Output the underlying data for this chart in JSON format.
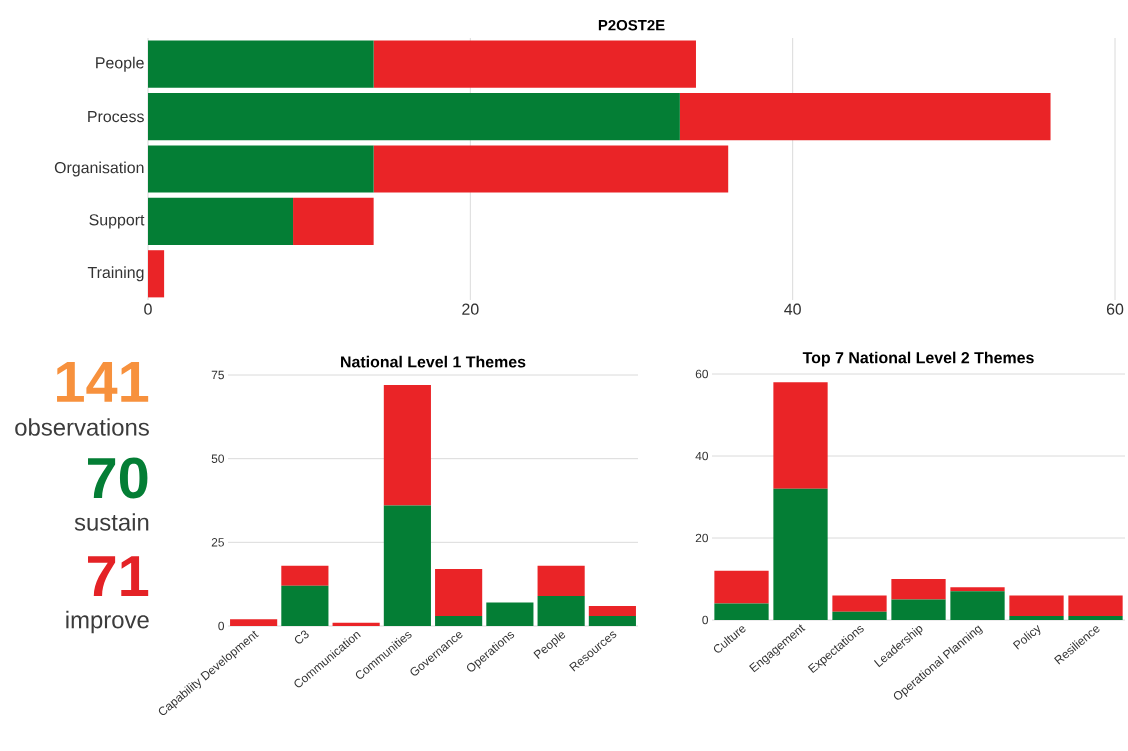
{
  "chart_data": [
    {
      "type": "bar",
      "title": "P2OST2E",
      "orientation": "horizontal",
      "stacked": true,
      "categories": [
        "People",
        "Process",
        "Organisation",
        "Support",
        "Training"
      ],
      "xlim": [
        0,
        60
      ],
      "xticks": [
        0,
        20,
        40,
        60
      ],
      "grid": "x",
      "series": [
        {
          "color": "#047e35",
          "values": [
            14,
            33,
            14,
            9,
            0
          ]
        },
        {
          "color": "#ea2427",
          "values": [
            20,
            23,
            22,
            5,
            1
          ]
        }
      ]
    },
    {
      "type": "other",
      "annotations": [
        "141",
        "observations",
        "70",
        "sustain",
        "71",
        "improve"
      ],
      "colors": [
        "#f7913d",
        "#3c3c3c",
        "#047e35",
        "#3c3c3c",
        "#e42226",
        "#3c3c3c"
      ]
    },
    {
      "type": "bar",
      "title": "National Level 1 Themes",
      "stacked": true,
      "categories": [
        "Capability Development",
        "C3",
        "Communication",
        "Communities",
        "Governance",
        "Operations",
        "People",
        "Resources"
      ],
      "ylim": [
        0,
        75
      ],
      "yticks": [
        0,
        25,
        50,
        75
      ],
      "grid": "y",
      "series": [
        {
          "color": "#047e35",
          "values": [
            0,
            12,
            0,
            36,
            3,
            7,
            9,
            3
          ]
        },
        {
          "color": "#ea2427",
          "values": [
            2,
            6,
            1,
            36,
            14,
            0,
            9,
            3
          ]
        }
      ]
    },
    {
      "type": "bar",
      "title": "Top 7 National Level 2 Themes",
      "stacked": true,
      "categories": [
        "Culture",
        "Engagement",
        "Expectations",
        "Leadership",
        "Operational Planning",
        "Policy",
        "Resilience"
      ],
      "ylim": [
        0,
        60
      ],
      "yticks": [
        0,
        20,
        40,
        60
      ],
      "grid": "y",
      "series": [
        {
          "color": "#047e35",
          "values": [
            4,
            32,
            2,
            5,
            7,
            1,
            1
          ]
        },
        {
          "color": "#ea2427",
          "values": [
            8,
            26,
            4,
            5,
            1,
            5,
            5
          ]
        }
      ]
    }
  ]
}
